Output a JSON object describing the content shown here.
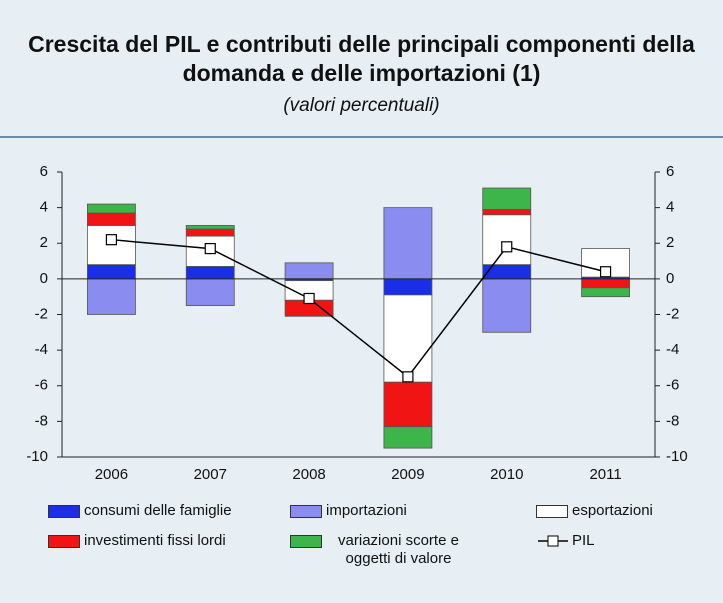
{
  "chart_data": {
    "type": "bar",
    "title": "Crescita del PIL e contributi delle principali componenti della domanda e delle importazioni (1)",
    "subtitle": "(valori percentuali)",
    "categories": [
      "2006",
      "2007",
      "2008",
      "2009",
      "2010",
      "2011"
    ],
    "stacked": true,
    "series": [
      {
        "name": "consumi delle famiglie",
        "color": "#1a2ee6",
        "values": [
          0.8,
          0.7,
          -0.1,
          -0.9,
          0.8,
          0.1
        ]
      },
      {
        "name": "importazioni",
        "color": "#8a8cf0",
        "values": [
          -2.0,
          -1.5,
          0.9,
          4.0,
          -3.0,
          0.0
        ]
      },
      {
        "name": "esportazioni",
        "color": "#ffffff",
        "values": [
          2.2,
          1.7,
          -1.1,
          -4.9,
          2.8,
          1.6
        ]
      },
      {
        "name": "investimenti fissi lordi",
        "color": "#f01414",
        "values": [
          0.7,
          0.4,
          -0.9,
          -2.5,
          0.3,
          -0.5
        ]
      },
      {
        "name": "variazioni scorte e oggetti di valore",
        "color": "#3db54a",
        "values": [
          0.5,
          0.2,
          0.0,
          -1.2,
          1.2,
          -0.5
        ]
      },
      {
        "name": "PIL",
        "color": "#000000",
        "type": "line",
        "values": [
          2.2,
          1.7,
          -1.1,
          -5.5,
          1.8,
          0.4
        ]
      }
    ],
    "ylim": [
      -10,
      6
    ],
    "yticks": [
      -10,
      -8,
      -6,
      -4,
      -2,
      0,
      2,
      4,
      6
    ],
    "y2lim": [
      -10,
      6
    ],
    "y2ticks": [
      -10,
      -8,
      -6,
      -4,
      -2,
      0,
      2,
      4,
      6
    ],
    "grid": false
  }
}
